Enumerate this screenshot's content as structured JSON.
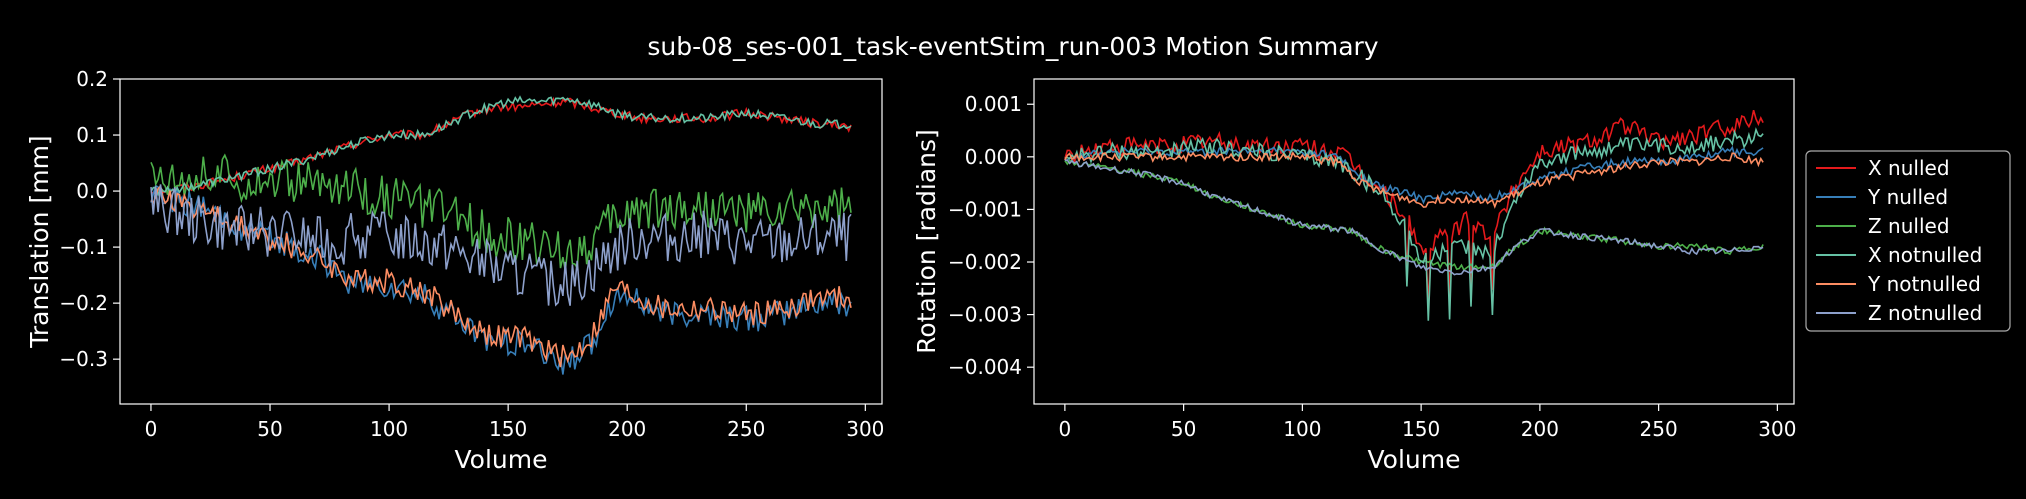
{
  "title": "sub-08_ses-001_task-eventStim_run-003 Motion Summary",
  "chart_data": [
    {
      "type": "line",
      "xlabel": "Volume",
      "ylabel": "Translation [mm]",
      "xlim": [
        -13,
        307
      ],
      "ylim": [
        -0.38,
        0.2
      ],
      "xticks": [
        0,
        50,
        100,
        150,
        200,
        250,
        300
      ],
      "yticks": [
        -0.3,
        -0.2,
        -0.1,
        0.0,
        0.1,
        0.2
      ],
      "ytick_labels": [
        "−0.3",
        "−0.2",
        "−0.1",
        "0.0",
        "0.1",
        "0.2"
      ],
      "series_keypoints": [
        {
          "name": "X nulled",
          "color": "#e41a1c",
          "x": [
            0,
            20,
            40,
            60,
            75,
            90,
            100,
            115,
            125,
            135,
            145,
            155,
            165,
            175,
            185,
            195,
            205,
            220,
            235,
            250,
            265,
            280,
            294
          ],
          "y": [
            0,
            0.01,
            0.03,
            0.05,
            0.07,
            0.09,
            0.1,
            0.1,
            0.12,
            0.14,
            0.15,
            0.15,
            0.155,
            0.16,
            0.15,
            0.14,
            0.13,
            0.13,
            0.13,
            0.14,
            0.13,
            0.12,
            0.115
          ]
        },
        {
          "name": "Y nulled",
          "color": "#377eb8",
          "x": [
            0,
            20,
            40,
            60,
            75,
            85,
            100,
            115,
            125,
            135,
            145,
            155,
            165,
            175,
            185,
            195,
            205,
            215,
            235,
            250,
            265,
            280,
            294
          ],
          "y": [
            0,
            -0.03,
            -0.07,
            -0.1,
            -0.13,
            -0.17,
            -0.17,
            -0.19,
            -0.22,
            -0.25,
            -0.27,
            -0.27,
            -0.29,
            -0.31,
            -0.27,
            -0.18,
            -0.2,
            -0.22,
            -0.22,
            -0.23,
            -0.22,
            -0.2,
            -0.2
          ]
        },
        {
          "name": "Z nulled",
          "color": "#4daf4a",
          "x": [
            0,
            20,
            40,
            60,
            75,
            90,
            100,
            115,
            125,
            135,
            145,
            155,
            165,
            175,
            185,
            195,
            205,
            215,
            235,
            250,
            265,
            280,
            294
          ],
          "y": [
            0.03,
            0.03,
            0.02,
            0.02,
            0.01,
            0.0,
            -0.01,
            -0.03,
            -0.04,
            -0.06,
            -0.08,
            -0.09,
            -0.1,
            -0.11,
            -0.09,
            -0.05,
            -0.03,
            -0.03,
            -0.03,
            -0.04,
            -0.04,
            -0.03,
            -0.03
          ]
        },
        {
          "name": "X notnulled",
          "color": "#66c2a5",
          "x": [
            0,
            20,
            40,
            60,
            75,
            90,
            100,
            115,
            125,
            135,
            145,
            155,
            165,
            175,
            185,
            195,
            205,
            220,
            235,
            250,
            265,
            280,
            294
          ],
          "y": [
            0,
            0.01,
            0.03,
            0.05,
            0.07,
            0.09,
            0.1,
            0.1,
            0.12,
            0.14,
            0.155,
            0.16,
            0.16,
            0.165,
            0.155,
            0.14,
            0.13,
            0.13,
            0.13,
            0.14,
            0.13,
            0.12,
            0.12
          ]
        },
        {
          "name": "Y notnulled",
          "color": "#fc8d62",
          "x": [
            0,
            20,
            40,
            60,
            75,
            85,
            100,
            115,
            125,
            135,
            145,
            155,
            165,
            175,
            185,
            195,
            205,
            215,
            235,
            250,
            265,
            280,
            294
          ],
          "y": [
            0,
            -0.03,
            -0.07,
            -0.1,
            -0.13,
            -0.16,
            -0.16,
            -0.18,
            -0.21,
            -0.24,
            -0.26,
            -0.26,
            -0.28,
            -0.3,
            -0.26,
            -0.17,
            -0.19,
            -0.21,
            -0.21,
            -0.22,
            -0.21,
            -0.19,
            -0.19
          ]
        },
        {
          "name": "Z notnulled",
          "color": "#8da0cb",
          "x": [
            0,
            20,
            40,
            60,
            75,
            90,
            100,
            115,
            125,
            135,
            145,
            155,
            165,
            175,
            185,
            195,
            205,
            215,
            235,
            250,
            265,
            280,
            294
          ],
          "y": [
            -0.02,
            -0.05,
            -0.07,
            -0.08,
            -0.09,
            -0.08,
            -0.08,
            -0.09,
            -0.1,
            -0.12,
            -0.14,
            -0.15,
            -0.16,
            -0.17,
            -0.14,
            -0.1,
            -0.08,
            -0.08,
            -0.08,
            -0.09,
            -0.09,
            -0.08,
            -0.08
          ]
        }
      ]
    },
    {
      "type": "line",
      "xlabel": "Volume",
      "ylabel": "Rotation [radians]",
      "xlim": [
        -13,
        307
      ],
      "ylim": [
        -0.0047,
        0.00148
      ],
      "xticks": [
        0,
        50,
        100,
        150,
        200,
        250,
        300
      ],
      "yticks": [
        -0.004,
        -0.003,
        -0.002,
        -0.001,
        0.0,
        0.001
      ],
      "ytick_labels": [
        "−0.004",
        "−0.003",
        "−0.002",
        "−0.001",
        "0.000",
        "0.001"
      ],
      "series_keypoints": [
        {
          "name": "X nulled",
          "color": "#e41a1c",
          "x": [
            0,
            20,
            40,
            60,
            80,
            100,
            115,
            125,
            135,
            145,
            150,
            160,
            170,
            180,
            190,
            200,
            210,
            220,
            235,
            250,
            265,
            280,
            294
          ],
          "y": [
            0,
            0.0002,
            0.0002,
            0.0003,
            0.0002,
            0.0002,
            0.0001,
            -0.0003,
            -0.0007,
            -0.0012,
            -0.0018,
            -0.0015,
            -0.0012,
            -0.0015,
            -0.0005,
            0.0001,
            0.0002,
            0.0003,
            0.0006,
            0.0003,
            0.0004,
            0.0006,
            0.0008
          ]
        },
        {
          "name": "Y nulled",
          "color": "#377eb8",
          "x": [
            0,
            20,
            40,
            60,
            80,
            100,
            115,
            125,
            135,
            145,
            150,
            160,
            170,
            180,
            190,
            200,
            210,
            220,
            235,
            250,
            265,
            280,
            294
          ],
          "y": [
            0,
            0.0001,
            0.0001,
            0.0001,
            0.0001,
            0.0001,
            0.0,
            -0.0004,
            -0.0006,
            -0.0007,
            -0.0008,
            -0.0007,
            -0.0007,
            -0.0008,
            -0.0006,
            -0.0004,
            -0.0003,
            -0.0002,
            -0.0001,
            -0.0001,
            0.0,
            0.0001,
            0.0001
          ]
        },
        {
          "name": "Z nulled",
          "color": "#4daf4a",
          "x": [
            0,
            15,
            30,
            50,
            65,
            80,
            100,
            120,
            135,
            150,
            165,
            180,
            190,
            200,
            215,
            235,
            250,
            265,
            280,
            294
          ],
          "y": [
            -0.0001,
            -0.0002,
            -0.0003,
            -0.0005,
            -0.0008,
            -0.001,
            -0.0013,
            -0.0014,
            -0.0018,
            -0.002,
            -0.0021,
            -0.0021,
            -0.0017,
            -0.0014,
            -0.0015,
            -0.0016,
            -0.0017,
            -0.0017,
            -0.0018,
            -0.0017
          ]
        },
        {
          "name": "X notnulled",
          "color": "#66c2a5",
          "x": [
            0,
            20,
            40,
            60,
            80,
            100,
            115,
            125,
            135,
            145,
            150,
            160,
            170,
            180,
            190,
            200,
            210,
            220,
            235,
            250,
            265,
            280,
            294
          ],
          "y": [
            0,
            0.0001,
            0.0001,
            0.0002,
            0.0001,
            0.0,
            -0.0001,
            -0.0004,
            -0.0008,
            -0.0014,
            -0.002,
            -0.0018,
            -0.0017,
            -0.0018,
            -0.0008,
            -0.0001,
            0.0,
            0.0001,
            0.0002,
            0.0002,
            0.0002,
            0.0003,
            0.0004
          ]
        },
        {
          "name": "Y notnulled",
          "color": "#fc8d62",
          "x": [
            0,
            20,
            40,
            60,
            80,
            100,
            115,
            125,
            135,
            145,
            150,
            160,
            170,
            180,
            190,
            200,
            210,
            220,
            235,
            250,
            265,
            280,
            294
          ],
          "y": [
            0,
            0.0,
            0.0,
            0.0,
            0.0,
            0.0,
            -0.0001,
            -0.0005,
            -0.0007,
            -0.0008,
            -0.0009,
            -0.0008,
            -0.0008,
            -0.0009,
            -0.0007,
            -0.0005,
            -0.0004,
            -0.0003,
            -0.0002,
            -0.0001,
            -0.0001,
            0.0,
            -0.0001
          ]
        },
        {
          "name": "Z notnulled",
          "color": "#8da0cb",
          "x": [
            0,
            15,
            30,
            50,
            65,
            80,
            100,
            120,
            135,
            150,
            165,
            180,
            190,
            200,
            215,
            235,
            250,
            265,
            280,
            294
          ],
          "y": [
            -0.0001,
            -0.0002,
            -0.0003,
            -0.0005,
            -0.0008,
            -0.001,
            -0.0013,
            -0.0014,
            -0.0018,
            -0.0021,
            -0.0022,
            -0.0021,
            -0.0017,
            -0.0014,
            -0.0015,
            -0.0016,
            -0.0017,
            -0.0018,
            -0.0018,
            -0.0017
          ]
        }
      ]
    }
  ],
  "legend": {
    "placement": "right of second plot",
    "entries": [
      {
        "label": "X nulled",
        "color": "#e41a1c"
      },
      {
        "label": "Y nulled",
        "color": "#377eb8"
      },
      {
        "label": "Z nulled",
        "color": "#4daf4a"
      },
      {
        "label": "X notnulled",
        "color": "#66c2a5"
      },
      {
        "label": "Y notnulled",
        "color": "#fc8d62"
      },
      {
        "label": "Z notnulled",
        "color": "#8da0cb"
      }
    ]
  }
}
